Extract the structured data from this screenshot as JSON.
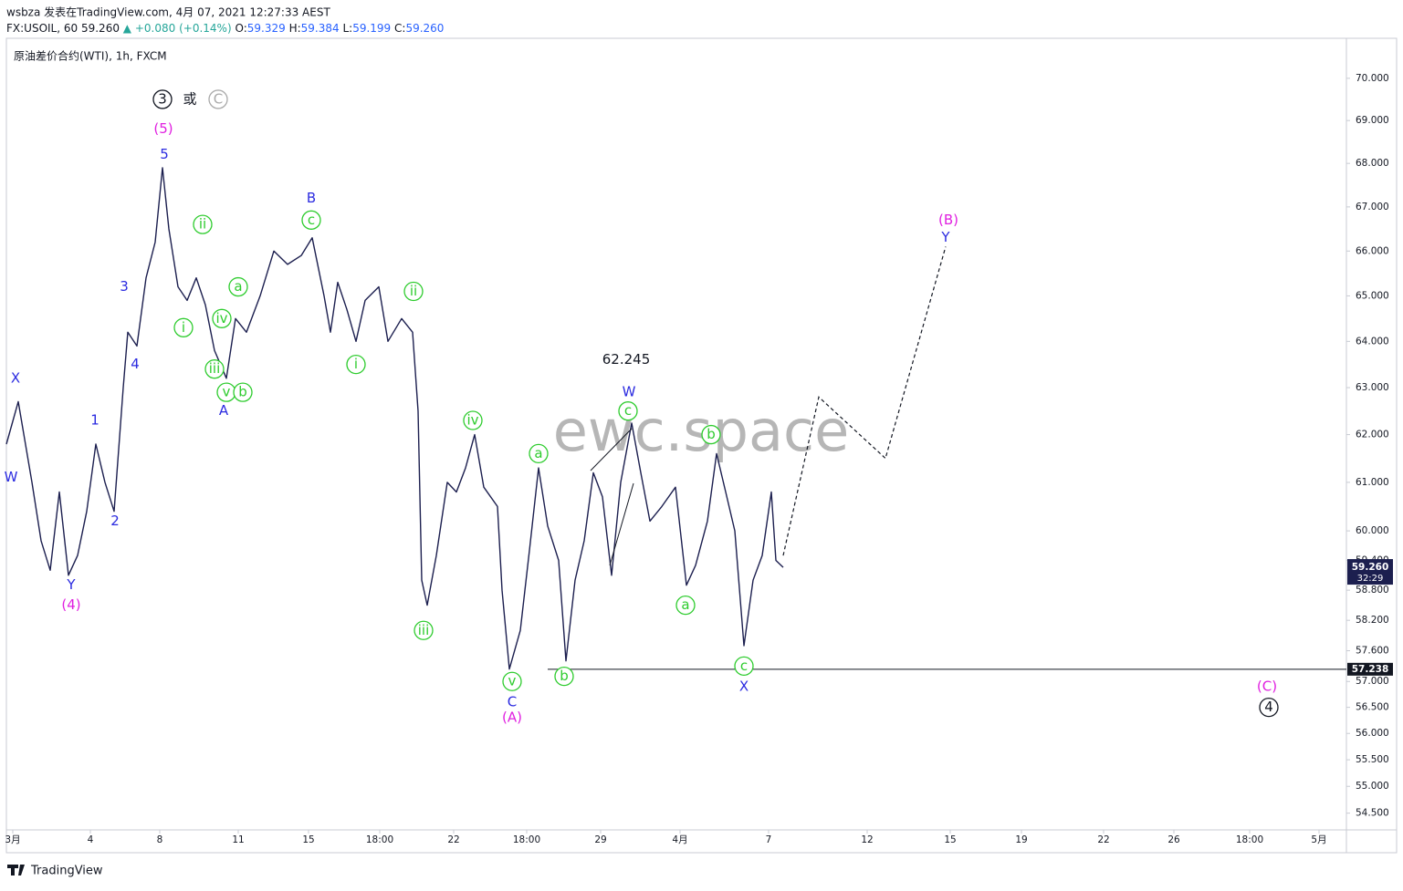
{
  "chart_data": {
    "type": "line",
    "title": "wsbza 发表在TradingView.com, 4月 07, 2021 12:27:33 AEST",
    "header": {
      "symbol": "FX:USOIL, 60",
      "last": "59.260",
      "arrow": "▲",
      "change": "+0.080 (+0.14%)",
      "ohlc": [
        {
          "label": "O:",
          "value": "59.329"
        },
        {
          "label": "H:",
          "value": "59.384"
        },
        {
          "label": "L:",
          "value": "59.199"
        },
        {
          "label": "C:",
          "value": "59.260"
        }
      ]
    },
    "log_scale": true,
    "xlim": [
      0,
      1468
    ],
    "ylim": [
      54.19,
      70.96
    ],
    "xticks": [
      {
        "value": 7,
        "label": "3月"
      },
      {
        "value": 92,
        "label": "4"
      },
      {
        "value": 168,
        "label": "8"
      },
      {
        "value": 254,
        "label": "11"
      },
      {
        "value": 331,
        "label": "15"
      },
      {
        "value": 409,
        "label": "18:00"
      },
      {
        "value": 490,
        "label": "22"
      },
      {
        "value": 570,
        "label": "18:00"
      },
      {
        "value": 651,
        "label": "29"
      },
      {
        "value": 738,
        "label": "4月"
      },
      {
        "value": 835,
        "label": "7"
      },
      {
        "value": 943,
        "label": "12"
      },
      {
        "value": 1034,
        "label": "15"
      },
      {
        "value": 1112,
        "label": "19"
      },
      {
        "value": 1202,
        "label": "22"
      },
      {
        "value": 1279,
        "label": "26"
      },
      {
        "value": 1362,
        "label": "18:00"
      },
      {
        "value": 1438,
        "label": "5月"
      }
    ],
    "yticks": [
      {
        "value": 70,
        "label": "70.000"
      },
      {
        "value": 69,
        "label": "69.000"
      },
      {
        "value": 68,
        "label": "68.000"
      },
      {
        "value": 67,
        "label": "67.000"
      },
      {
        "value": 66,
        "label": "66.000"
      },
      {
        "value": 65,
        "label": "65.000"
      },
      {
        "value": 64,
        "label": "64.000"
      },
      {
        "value": 63,
        "label": "63.000"
      },
      {
        "value": 62,
        "label": "62.000"
      },
      {
        "value": 61,
        "label": "61.000"
      },
      {
        "value": 60,
        "label": "60.000"
      },
      {
        "value": 59.4,
        "label": "59.400"
      },
      {
        "value": 58.8,
        "label": "58.800"
      },
      {
        "value": 58.2,
        "label": "58.200"
      },
      {
        "value": 57.6,
        "label": "57.600"
      },
      {
        "value": 57,
        "label": "57.000"
      },
      {
        "value": 56.5,
        "label": "56.500"
      },
      {
        "value": 56,
        "label": "56.000"
      },
      {
        "value": 55.5,
        "label": "55.500"
      },
      {
        "value": 55,
        "label": "55.000"
      },
      {
        "value": 54.5,
        "label": "54.500"
      }
    ],
    "series": [
      {
        "name": "原油差价合约(WTI), 1h, FXCM",
        "color": "#1c1f4f",
        "x": [
          0,
          13,
          28,
          38,
          48,
          58,
          68,
          78,
          88,
          98,
          108,
          118,
          128,
          133,
          143,
          153,
          163,
          171,
          178,
          188,
          198,
          208,
          218,
          228,
          241,
          251,
          263,
          278,
          293,
          308,
          323,
          335,
          348,
          355,
          363,
          373,
          383,
          393,
          408,
          418,
          433,
          445,
          451,
          455,
          461,
          471,
          483,
          493,
          503,
          513,
          523,
          538,
          543,
          551,
          563,
          573,
          583,
          593,
          605,
          613,
          623,
          633,
          643,
          653,
          663,
          673,
          685,
          695,
          705,
          718,
          733,
          745,
          755,
          768,
          778,
          788,
          798,
          808,
          818,
          828,
          838,
          843,
          851
        ],
        "values": [
          61.8,
          62.7,
          61.0,
          59.8,
          59.2,
          60.8,
          59.1,
          59.5,
          60.4,
          61.8,
          61.0,
          60.4,
          63.0,
          64.2,
          63.9,
          65.4,
          66.2,
          67.9,
          66.5,
          65.2,
          64.9,
          65.4,
          64.8,
          63.8,
          63.2,
          64.5,
          64.2,
          65.0,
          66.0,
          65.7,
          65.9,
          66.3,
          65.0,
          64.2,
          65.3,
          64.7,
          64.0,
          64.9,
          65.2,
          64.0,
          64.5,
          64.2,
          62.5,
          59.0,
          58.5,
          59.5,
          61.0,
          60.8,
          61.3,
          62.0,
          60.9,
          60.5,
          58.8,
          57.24,
          58.0,
          59.6,
          61.3,
          60.1,
          59.4,
          57.4,
          59.0,
          59.8,
          61.2,
          60.7,
          59.1,
          61.0,
          62.245,
          61.2,
          60.2,
          60.5,
          60.9,
          58.9,
          59.3,
          60.2,
          61.6,
          60.8,
          60.0,
          57.7,
          59.0,
          59.5,
          60.8,
          59.4,
          59.26
        ]
      }
    ],
    "projection": {
      "x": [
        851,
        890,
        963,
        1029
      ],
      "values": [
        59.5,
        62.8,
        61.5,
        66.1
      ]
    },
    "last_price": {
      "value": 59.26,
      "label": "59.260",
      "countdown": "32:29"
    },
    "level": {
      "value": 57.238,
      "label": "57.238",
      "x": 593
    },
    "watermark": "ewc.space",
    "annotations": [
      {
        "text": "X",
        "x": 10,
        "y": 63.2,
        "color": "#2b2be0",
        "circle": false
      },
      {
        "text": "W",
        "x": 5,
        "y": 61.1,
        "color": "#2b2be0",
        "circle": false
      },
      {
        "text": "Y",
        "x": 71,
        "y": 58.9,
        "color": "#2b2be0",
        "circle": false
      },
      {
        "text": "(4)",
        "x": 71,
        "y": 58.5,
        "color": "#e020e0",
        "circle": false
      },
      {
        "text": "1",
        "x": 97,
        "y": 62.3,
        "color": "#2b2be0",
        "circle": false
      },
      {
        "text": "2",
        "x": 119,
        "y": 60.2,
        "color": "#2b2be0",
        "circle": false
      },
      {
        "text": "3",
        "x": 129,
        "y": 65.2,
        "color": "#2b2be0",
        "circle": false
      },
      {
        "text": "4",
        "x": 141,
        "y": 63.5,
        "color": "#2b2be0",
        "circle": false
      },
      {
        "text": "5",
        "x": 173,
        "y": 68.2,
        "color": "#2b2be0",
        "circle": false
      },
      {
        "text": "(5)",
        "x": 172,
        "y": 68.8,
        "color": "#e020e0",
        "circle": false
      },
      {
        "text": "3",
        "x": 171,
        "y": 69.5,
        "color": "#131722",
        "circle": true
      },
      {
        "text": "或",
        "x": 201,
        "y": 69.5,
        "color": "#131722",
        "circle": false
      },
      {
        "text": "C",
        "x": 232,
        "y": 69.5,
        "color": "#aaaaaa",
        "circle": true
      },
      {
        "text": "ii",
        "x": 215,
        "y": 66.6,
        "color": "#2ecc2e",
        "circle": true
      },
      {
        "text": "i",
        "x": 194,
        "y": 64.3,
        "color": "#2ecc2e",
        "circle": true
      },
      {
        "text": "iv",
        "x": 236,
        "y": 64.5,
        "color": "#2ecc2e",
        "circle": true
      },
      {
        "text": "iii",
        "x": 228,
        "y": 63.4,
        "color": "#2ecc2e",
        "circle": true
      },
      {
        "text": "v",
        "x": 241,
        "y": 62.9,
        "color": "#2ecc2e",
        "circle": true
      },
      {
        "text": "a",
        "x": 254,
        "y": 65.2,
        "color": "#2ecc2e",
        "circle": true
      },
      {
        "text": "b",
        "x": 259,
        "y": 62.9,
        "color": "#2ecc2e",
        "circle": true
      },
      {
        "text": "A",
        "x": 238,
        "y": 62.5,
        "color": "#2b2be0",
        "circle": false
      },
      {
        "text": "B",
        "x": 334,
        "y": 67.2,
        "color": "#2b2be0",
        "circle": false
      },
      {
        "text": "c",
        "x": 334,
        "y": 66.7,
        "color": "#2ecc2e",
        "circle": true
      },
      {
        "text": "i",
        "x": 383,
        "y": 63.5,
        "color": "#2ecc2e",
        "circle": true
      },
      {
        "text": "ii",
        "x": 446,
        "y": 65.1,
        "color": "#2ecc2e",
        "circle": true
      },
      {
        "text": "iii",
        "x": 457,
        "y": 58.0,
        "color": "#2ecc2e",
        "circle": true
      },
      {
        "text": "iv",
        "x": 511,
        "y": 62.3,
        "color": "#2ecc2e",
        "circle": true
      },
      {
        "text": "a",
        "x": 583,
        "y": 61.6,
        "color": "#2ecc2e",
        "circle": true
      },
      {
        "text": "v",
        "x": 554,
        "y": 57.0,
        "color": "#2ecc2e",
        "circle": true
      },
      {
        "text": "C",
        "x": 554,
        "y": 56.6,
        "color": "#2b2be0",
        "circle": false
      },
      {
        "text": "(A)",
        "x": 554,
        "y": 56.3,
        "color": "#e020e0",
        "circle": false
      },
      {
        "text": "b",
        "x": 611,
        "y": 57.1,
        "color": "#2ecc2e",
        "circle": true
      },
      {
        "text": "62.245",
        "x": 679,
        "y": 63.6,
        "color": "#131722",
        "circle": false
      },
      {
        "text": "W",
        "x": 682,
        "y": 62.9,
        "color": "#2b2be0",
        "circle": false
      },
      {
        "text": "c",
        "x": 681,
        "y": 62.5,
        "color": "#2ecc2e",
        "circle": true
      },
      {
        "text": "b",
        "x": 772,
        "y": 62.0,
        "color": "#2ecc2e",
        "circle": true
      },
      {
        "text": "a",
        "x": 744,
        "y": 58.5,
        "color": "#2ecc2e",
        "circle": true
      },
      {
        "text": "c",
        "x": 808,
        "y": 57.3,
        "color": "#2ecc2e",
        "circle": true
      },
      {
        "text": "X",
        "x": 808,
        "y": 56.9,
        "color": "#2b2be0",
        "circle": false
      },
      {
        "text": "(B)",
        "x": 1032,
        "y": 66.7,
        "color": "#e020e0",
        "circle": false
      },
      {
        "text": "Y",
        "x": 1029,
        "y": 66.3,
        "color": "#2b2be0",
        "circle": false
      },
      {
        "text": "(C)",
        "x": 1381,
        "y": 56.9,
        "color": "#e020e0",
        "circle": false
      },
      {
        "text": "4",
        "x": 1383,
        "y": 56.5,
        "color": "#131722",
        "circle": true
      }
    ],
    "footer": "TradingView"
  }
}
